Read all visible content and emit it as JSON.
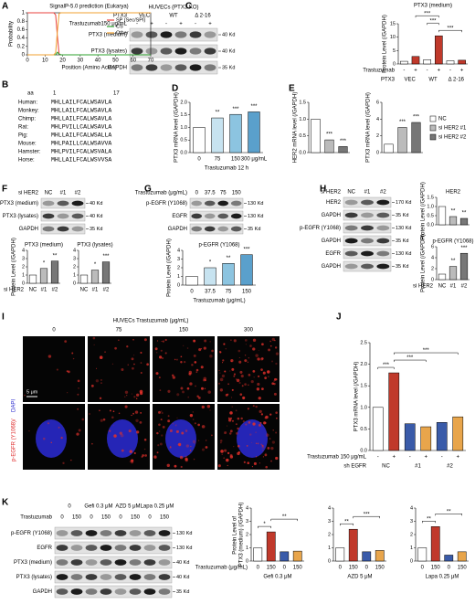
{
  "panel_labels": [
    "A",
    "B",
    "C",
    "D",
    "E",
    "F",
    "G",
    "H",
    "I",
    "J",
    "K"
  ],
  "alignment": {
    "aa": "aa",
    "start": "1",
    "end": "17",
    "rows": [
      {
        "species": "Human:",
        "seq": "MHLLAILFCALWSAVLA"
      },
      {
        "species": "Monkey:",
        "seq": "MHLLAILFCALWSAVLA"
      },
      {
        "species": "Chimp:",
        "seq": "MHLLAILFCALWSAVLA"
      },
      {
        "species": "Rat:",
        "seq": "MHLPVILLCALWSAVLA"
      },
      {
        "species": "Pig:",
        "seq": "MHLLAILFCALWSALLA"
      },
      {
        "species": "Mouse:",
        "seq": "MHLPAILLCALWSAVVA"
      },
      {
        "species": "Hamster:",
        "seq": "MHLPVILFCALWSVALA"
      },
      {
        "species": "Horse:",
        "seq": "MHLLAILFCALWSVVSA"
      }
    ]
  },
  "blots": {
    "c": {
      "title": "HUVECs (PTX3 KO)",
      "row_header": "PTX3",
      "groups": [
        "VEC",
        "WT",
        "Δ 2-16"
      ],
      "treatment_label": "Trastuzumab150 μg/mL",
      "lanes": [
        "-",
        "+",
        "-",
        "+",
        "-",
        "+"
      ],
      "rows": [
        "PTX3 (medium)",
        "PTX3 (lysates)",
        "GAPDH"
      ],
      "kd": [
        "40 Kd",
        "40 Kd",
        "35 Kd"
      ]
    },
    "f": {
      "treatment_label": "si HER2",
      "lanes": [
        "NC",
        "#1",
        "#2"
      ],
      "rows": [
        "PTX3 (medium)",
        "PTX3 (lysates)",
        "GAPDH"
      ],
      "kd": [
        "40 Kd",
        "40 Kd",
        "35 Kd"
      ]
    },
    "g": {
      "treatment_label": "Trastuzumab (μg/mL)",
      "lanes": [
        "0",
        "37.5",
        "75",
        "150"
      ],
      "rows": [
        "p-EGFR (Y1068)",
        "EGFR",
        "GAPDH"
      ],
      "kd": [
        "130 Kd",
        "130 Kd",
        "35 Kd"
      ]
    },
    "h": {
      "treatment_label": "si HER2",
      "lanes": [
        "NC",
        "#1",
        "#2"
      ],
      "rows": [
        "HER2",
        "GAPDH",
        "p-EGFR (Y1068)",
        "GAPDH",
        "EGFR",
        "GAPDH"
      ],
      "kd": [
        "170 Kd",
        "35 Kd",
        "130 Kd",
        "35 Kd",
        "130 Kd",
        "35 Kd"
      ]
    },
    "k": {
      "groups": [
        "0",
        "Gefi 0.3 μM",
        "AZD 5 μM",
        "Lapa 0.25 μM"
      ],
      "treatment_label": "Trastuzumab",
      "lanes": [
        "0",
        "150",
        "0",
        "150",
        "0",
        "150",
        "0",
        "150"
      ],
      "rows": [
        "p-EGFR (Y1068)",
        "EGFR",
        "PTX3 (medium)",
        "PTX3 (lysates)",
        "GAPDH"
      ],
      "kd": [
        "130 Kd",
        "130 Kd",
        "40 Kd",
        "40 Kd",
        "35 Kd"
      ]
    }
  },
  "microscopy": {
    "title": "HUVECs  Trastuzumab (μg/mL)",
    "columns": [
      "0",
      "75",
      "150",
      "300"
    ],
    "stain_label": "p-EGFR (Y1068)/",
    "dapi_label": "DAPI",
    "scale_bar": "5 μm"
  },
  "chart_data": [
    {
      "type": "line",
      "title": "SignalP-5.0 prediction (Eukarya)",
      "xlabel": "Position (Amino Acids)",
      "ylabel": "Probability",
      "x": [
        0,
        14,
        15,
        16,
        17,
        18,
        19,
        70
      ],
      "xlim": [
        0,
        70
      ],
      "xticks": [
        0,
        10,
        20,
        30,
        40,
        50,
        60,
        70
      ],
      "ylim": [
        0,
        1
      ],
      "yticks": [
        0,
        0.2,
        0.4,
        0.6,
        0.8,
        1
      ],
      "legend": "upper right",
      "series": [
        {
          "name": "SP (Sec/SPI)",
          "color": "#e8413c",
          "values": [
            1,
            1,
            1,
            0.95,
            0.45,
            0.02,
            0,
            0
          ]
        },
        {
          "name": "CS",
          "color": "#2ca02c",
          "values": [
            0,
            0,
            0,
            0,
            0.06,
            0.02,
            0,
            0
          ]
        },
        {
          "name": "Other",
          "color": "#f0a030",
          "values": [
            0,
            0,
            0,
            0.05,
            0.55,
            0.98,
            1,
            1
          ]
        }
      ]
    },
    {
      "type": "bar",
      "title": "PTX3 (medium)",
      "ylabel": "Protein Level (/GAPDH)",
      "categories": [
        "-",
        "+",
        "-",
        "+",
        "-",
        "+"
      ],
      "groups": [
        "VEC",
        "WT",
        "Δ 2-16"
      ],
      "row_labels": [
        "Trastuzumab",
        "PTX3"
      ],
      "values": [
        1,
        2.8,
        1.6,
        10.5,
        1.2,
        1.4
      ],
      "colors": [
        "#ffffff",
        "#c0392b",
        "#ffffff",
        "#c0392b",
        "#ffffff",
        "#c0392b"
      ],
      "ylim": [
        0,
        15
      ],
      "yticks": [
        0,
        5,
        10,
        15
      ],
      "comparisons": [
        "***",
        "***",
        "***"
      ]
    },
    {
      "type": "bar",
      "ylabel": "PTX3 mRNA level (/GAPDH)",
      "xlabel": "Trastuzumab 12 h",
      "categories": [
        "0",
        "75",
        "150",
        "300 μg/mL"
      ],
      "values": [
        1,
        1.38,
        1.52,
        1.62
      ],
      "colors": [
        "#ffffff",
        "#c7e3f0",
        "#8cc4e0",
        "#5aa0cc"
      ],
      "ylim": [
        0,
        2
      ],
      "yticks": [
        {
          "value": 0,
          "label": "0.0"
        },
        {
          "value": 0.5,
          "label": "0.5"
        },
        {
          "value": 1,
          "label": "1.0"
        },
        {
          "value": 1.5,
          "label": "1.5"
        },
        {
          "value": 2,
          "label": "2.0"
        }
      ],
      "value_notes": [
        null,
        "**",
        "***",
        "***"
      ]
    },
    {
      "type": "bar",
      "ylabel": "HER2 mRNA level (/GAPDH)",
      "values": [
        1,
        0.38,
        0.18
      ],
      "colors": [
        "#ffffff",
        "#bbbbbb",
        "#777777"
      ],
      "ylim": [
        0,
        1.5
      ],
      "yticks": [
        {
          "value": 0,
          "label": "0.0"
        },
        {
          "value": 0.5,
          "label": "0.5"
        },
        {
          "value": 1,
          "label": "1.0"
        },
        {
          "value": 1.5,
          "label": "1.5"
        }
      ],
      "value_notes": [
        null,
        "***",
        "***"
      ]
    },
    {
      "type": "bar",
      "ylabel": "PTX3 mRNA level (/GAPDH)",
      "values": [
        1,
        3,
        3.6
      ],
      "colors": [
        "#ffffff",
        "#bbbbbb",
        "#777777"
      ],
      "ylim": [
        0,
        6
      ],
      "yticks": [
        0,
        2,
        4,
        6
      ],
      "value_notes": [
        null,
        "***",
        "***"
      ],
      "legend": [
        {
          "name": "NC",
          "color": "#ffffff"
        },
        {
          "name": "si HER2 #1",
          "color": "#bbbbbb"
        },
        {
          "name": "si HER2 #2",
          "color": "#777777"
        }
      ]
    },
    {
      "type": "bar",
      "title": "PTX3 (medium)",
      "ylabel": "Protein Level (/GAPDH)",
      "categories": [
        "NC",
        "#1",
        "#2"
      ],
      "row_labels": [
        "si HER2"
      ],
      "values": [
        1,
        1.8,
        2.7
      ],
      "colors": [
        "#ffffff",
        "#bbbbbb",
        "#777777"
      ],
      "ylim": [
        0,
        4
      ],
      "yticks": [
        0,
        1,
        2,
        3,
        4
      ],
      "value_notes": [
        null,
        "*",
        "**"
      ]
    },
    {
      "type": "bar",
      "title": "PTX3 (lysates)",
      "categories": [
        "NC",
        "#1",
        "#2"
      ],
      "values": [
        1,
        1.6,
        2.6
      ],
      "colors": [
        "#ffffff",
        "#bbbbbb",
        "#777777"
      ],
      "ylim": [
        0,
        4
      ],
      "yticks": [
        0,
        1,
        2,
        3,
        4
      ],
      "value_notes": [
        null,
        "*",
        "***"
      ]
    },
    {
      "type": "bar",
      "title": "p-EGFR (Y1068)",
      "ylabel": "Protein Level (/GAPDH)",
      "xlabel": "Trastuzumab (μg/mL)",
      "categories": [
        "0",
        "37.5",
        "75",
        "150"
      ],
      "values": [
        1,
        2,
        2.5,
        3.5
      ],
      "colors": [
        "#ffffff",
        "#c7e3f0",
        "#8cc4e0",
        "#5aa0cc"
      ],
      "ylim": [
        0,
        4
      ],
      "yticks": [
        0,
        1,
        2,
        3,
        4
      ],
      "value_notes": [
        null,
        "*",
        "**",
        "***"
      ]
    },
    {
      "type": "bar",
      "title": "HER2",
      "ylabel": "Protein Level (/GAPDH)",
      "values": [
        1,
        0.45,
        0.35
      ],
      "colors": [
        "#ffffff",
        "#bbbbbb",
        "#777777"
      ],
      "ylim": [
        0,
        1.5
      ],
      "yticks": [
        {
          "value": 0,
          "label": "0.0"
        },
        {
          "value": 0.5,
          "label": "0.5"
        },
        {
          "value": 1,
          "label": "1.0"
        },
        {
          "value": 1.5,
          "label": "1.5"
        }
      ],
      "value_notes": [
        null,
        "**",
        "**"
      ]
    },
    {
      "type": "bar",
      "title": "p-EGFR (Y1068)",
      "ylabel": "Protein Level (/GAPDH)",
      "categories": [
        "NC",
        "#1",
        "#2"
      ],
      "row_labels": [
        "si HER2"
      ],
      "values": [
        1,
        2.4,
        4.8
      ],
      "colors": [
        "#ffffff",
        "#bbbbbb",
        "#777777"
      ],
      "ylim": [
        0,
        6
      ],
      "yticks": [
        0,
        2,
        4,
        6
      ],
      "value_notes": [
        null,
        "**",
        "***"
      ]
    },
    {
      "type": "bar",
      "ylabel": "PTX3 mRNA level (/GAPDH)",
      "categories": [
        "-",
        "+",
        "-",
        "+",
        "-",
        "+"
      ],
      "groups": [
        "NC",
        "#1",
        "#2"
      ],
      "row_labels": [
        "Trastuzumab 150 μg/mL",
        "sh EGFR"
      ],
      "values": [
        1,
        1.8,
        0.62,
        0.55,
        0.65,
        0.78
      ],
      "colors": [
        "#ffffff",
        "#c0392b",
        "#3a5ba9",
        "#e8a54b",
        "#3a5ba9",
        "#e8a54b"
      ],
      "ylim": [
        0,
        2.5
      ],
      "yticks": [
        {
          "value": 0,
          "label": "0.0"
        },
        {
          "value": 0.5,
          "label": "0.5"
        },
        {
          "value": 1,
          "label": "1.0"
        },
        {
          "value": 1.5,
          "label": "1.5"
        },
        {
          "value": 2,
          "label": "2.0"
        },
        {
          "value": 2.5,
          "label": "2.5"
        }
      ],
      "comparisons": [
        "***",
        "***",
        "***"
      ]
    },
    {
      "type": "bar",
      "ylabel": "Protein Level of PTX3 (medium) (/GAPDH)",
      "xlabel": "Gefi 0.3 μM",
      "categories": [
        "0",
        "150",
        "0",
        "150"
      ],
      "row_labels": [
        "Trastuzumab (μg/mL)"
      ],
      "values": [
        1,
        2.2,
        0.7,
        0.75
      ],
      "colors": [
        "#ffffff",
        "#c0392b",
        "#3a5ba9",
        "#e8a54b"
      ],
      "ylim": [
        0,
        4
      ],
      "yticks": [
        0,
        1,
        2,
        3,
        4
      ],
      "comparisons": [
        "*",
        "**"
      ]
    },
    {
      "type": "bar",
      "xlabel": "AZD 5 μM",
      "categories": [
        "0",
        "150",
        "0",
        "150"
      ],
      "values": [
        1,
        2.4,
        0.7,
        0.8
      ],
      "colors": [
        "#ffffff",
        "#c0392b",
        "#3a5ba9",
        "#e8a54b"
      ],
      "ylim": [
        0,
        4
      ],
      "yticks": [
        0,
        1,
        2,
        3,
        4
      ],
      "comparisons": [
        "**",
        "***"
      ]
    },
    {
      "type": "bar",
      "xlabel": "Lapa 0.25 μM",
      "categories": [
        "0",
        "150",
        "0",
        "150"
      ],
      "values": [
        1,
        2.6,
        0.45,
        0.7
      ],
      "colors": [
        "#ffffff",
        "#c0392b",
        "#3a5ba9",
        "#e8a54b"
      ],
      "ylim": [
        0,
        4
      ],
      "yticks": [
        0,
        1,
        2,
        3,
        4
      ],
      "comparisons": [
        "**",
        "**"
      ]
    }
  ]
}
